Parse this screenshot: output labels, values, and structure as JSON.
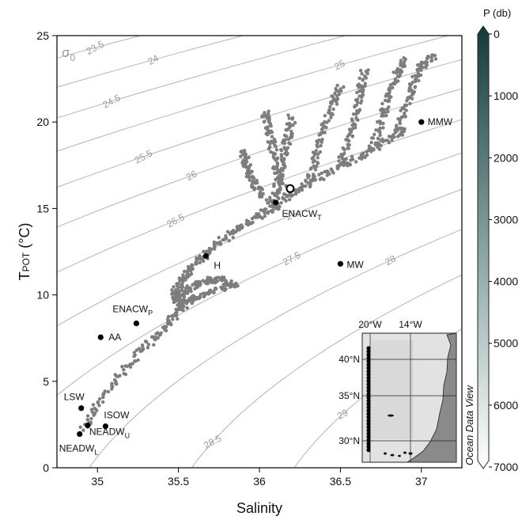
{
  "chart_data": {
    "type": "scatter",
    "title": "",
    "xlabel": "Salinity",
    "ylabel_main": "T",
    "ylabel_sub": "POT",
    "ylabel_unit": " (°C)",
    "xlim": [
      34.75,
      37.25
    ],
    "ylim": [
      0,
      25
    ],
    "xticks": [
      "35",
      "35.5",
      "36",
      "36.5",
      "37"
    ],
    "yticks": [
      "0",
      "5",
      "10",
      "15",
      "20",
      "25"
    ],
    "grid": false,
    "sigma_symbol": "σ",
    "sigma_sub": "0",
    "isopycnals": [
      {
        "label": "23.5",
        "value": 23.5
      },
      {
        "label": "24",
        "value": 24
      },
      {
        "label": "24.5",
        "value": 24.5
      },
      {
        "label": "25",
        "value": 25
      },
      {
        "label": "25.5",
        "value": 25.5
      },
      {
        "label": "26",
        "value": 26
      },
      {
        "label": "26.5",
        "value": 26.5
      },
      {
        "label": "27",
        "value": 27
      },
      {
        "label": "27.5",
        "value": 27.5
      },
      {
        "label": "28",
        "value": 28
      },
      {
        "label": "28.5",
        "value": 28.5
      },
      {
        "label": "29",
        "value": 29
      }
    ],
    "profile_series": [
      {
        "points": [
          [
            34.92,
            2.2
          ],
          [
            35.0,
            3.8
          ],
          [
            35.15,
            5.5
          ],
          [
            35.3,
            7.0
          ],
          [
            35.42,
            8.2
          ],
          [
            35.5,
            9.1
          ],
          [
            35.55,
            9.6
          ]
        ]
      },
      {
        "points": [
          [
            35.48,
            9.6
          ],
          [
            35.55,
            10.3
          ],
          [
            35.65,
            10.8
          ],
          [
            35.75,
            10.9
          ],
          [
            35.85,
            10.6
          ],
          [
            35.7,
            10.2
          ],
          [
            35.6,
            9.8
          ],
          [
            35.5,
            9.5
          ],
          [
            35.48,
            10.1
          ],
          [
            35.52,
            10.8
          ],
          [
            35.58,
            11.6
          ],
          [
            35.65,
            12.2
          ]
        ]
      },
      {
        "points": [
          [
            35.65,
            12.2
          ],
          [
            35.75,
            13.0
          ],
          [
            35.85,
            13.7
          ],
          [
            35.95,
            14.3
          ],
          [
            36.05,
            14.9
          ],
          [
            36.15,
            15.6
          ],
          [
            36.3,
            16.4
          ],
          [
            36.45,
            17.2
          ],
          [
            36.6,
            17.9
          ],
          [
            36.75,
            18.7
          ],
          [
            36.9,
            19.6
          ]
        ]
      },
      {
        "points": [
          [
            36.1,
            15.6
          ],
          [
            36.12,
            16.8
          ],
          [
            36.15,
            18.0
          ],
          [
            36.18,
            19.2
          ],
          [
            36.2,
            20.3
          ]
        ]
      },
      {
        "points": [
          [
            36.3,
            16.4
          ],
          [
            36.35,
            18.0
          ],
          [
            36.4,
            19.6
          ],
          [
            36.45,
            21.0
          ],
          [
            36.5,
            22.0
          ]
        ]
      },
      {
        "points": [
          [
            36.5,
            17.5
          ],
          [
            36.55,
            19.0
          ],
          [
            36.6,
            20.4
          ],
          [
            36.62,
            21.8
          ],
          [
            36.65,
            23.0
          ]
        ]
      },
      {
        "points": [
          [
            36.7,
            18.4
          ],
          [
            36.75,
            20.0
          ],
          [
            36.8,
            21.5
          ],
          [
            36.85,
            22.8
          ],
          [
            36.9,
            23.6
          ]
        ]
      },
      {
        "points": [
          [
            36.85,
            19.3
          ],
          [
            36.9,
            20.8
          ],
          [
            36.95,
            22.2
          ],
          [
            37.0,
            23.3
          ],
          [
            37.08,
            23.9
          ]
        ]
      },
      {
        "points": [
          [
            36.12,
            14.9
          ],
          [
            36.0,
            15.9
          ],
          [
            35.95,
            16.8
          ],
          [
            35.92,
            17.6
          ],
          [
            35.9,
            18.4
          ]
        ]
      },
      {
        "points": [
          [
            36.22,
            15.8
          ],
          [
            36.1,
            17.2
          ],
          [
            36.08,
            18.6
          ],
          [
            36.05,
            19.8
          ],
          [
            36.03,
            20.6
          ]
        ]
      }
    ],
    "water_masses": [
      {
        "label": "MMW",
        "sub": "",
        "x": 37.0,
        "y": 20.0
      },
      {
        "label": "ENACW",
        "sub": "T",
        "x": 36.1,
        "y": 15.35
      },
      {
        "label": "H",
        "sub": "",
        "x": 35.67,
        "y": 12.25
      },
      {
        "label": "MW",
        "sub": "",
        "x": 36.5,
        "y": 11.8
      },
      {
        "label": "ENACW",
        "sub": "P",
        "x": 35.24,
        "y": 8.35
      },
      {
        "label": "AA",
        "sub": "",
        "x": 35.02,
        "y": 7.55
      },
      {
        "label": "LSW",
        "sub": "",
        "x": 34.9,
        "y": 3.45
      },
      {
        "label": "ISOW",
        "sub": "",
        "x": 35.05,
        "y": 2.4
      },
      {
        "label": "NEADW",
        "sub": "U",
        "x": 34.94,
        "y": 2.45
      },
      {
        "label": "NEADW",
        "sub": "L",
        "x": 34.89,
        "y": 1.95
      }
    ],
    "highlight_point": {
      "x": 36.19,
      "y": 16.15
    },
    "colorbar": {
      "title": "P (db)",
      "ticks": [
        "0",
        "1000",
        "2000",
        "3000",
        "4000",
        "5000",
        "6000",
        "7000"
      ],
      "range": [
        0,
        7000
      ],
      "color_top": "#16393a",
      "color_bottom": "#ffffff"
    },
    "watermark": "Ocean Data View",
    "inset_map": {
      "lon_labels": [
        "20°W",
        "14°W"
      ],
      "lat_labels": [
        "40°N",
        "35°N",
        "30°N"
      ]
    }
  },
  "colors": {
    "data_points": "#7d7d7d",
    "isopycnal_line": "#b4b4b4",
    "marker": "#000000"
  }
}
